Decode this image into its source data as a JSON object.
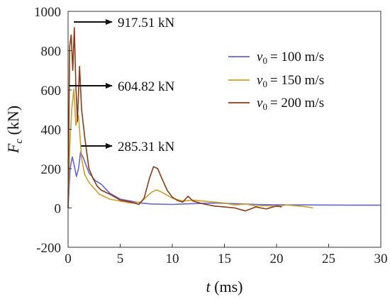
{
  "chart_data": {
    "type": "line",
    "xlabel": {
      "var": "t",
      "unit": " (ms)"
    },
    "ylabel": {
      "var": "F",
      "sub": "c",
      "unit": " (kN)"
    },
    "xlim": [
      0,
      30
    ],
    "ylim": [
      -200,
      1000
    ],
    "x_ticks": [
      {
        "v": 0,
        "label": "0"
      },
      {
        "v": 5,
        "label": "5"
      },
      {
        "v": 10,
        "label": "10"
      },
      {
        "v": 15,
        "label": "15"
      },
      {
        "v": 20,
        "label": "20"
      },
      {
        "v": 25,
        "label": "25"
      },
      {
        "v": 30,
        "label": "30"
      }
    ],
    "y_ticks": [
      {
        "v": -200,
        "label": "-200"
      },
      {
        "v": 0,
        "label": "0"
      },
      {
        "v": 200,
        "label": "200"
      },
      {
        "v": 400,
        "label": "400"
      },
      {
        "v": 600,
        "label": "600"
      },
      {
        "v": 800,
        "label": "800"
      },
      {
        "v": 1000,
        "label": "1000"
      }
    ],
    "grid": false,
    "legend_position": "top-right",
    "series": [
      {
        "name": "= 100 m/s",
        "legend_var": "v",
        "legend_sub": "0",
        "color": "#6464d2",
        "points": [
          [
            0,
            0
          ],
          [
            0.2,
            200
          ],
          [
            0.4,
            260
          ],
          [
            0.6,
            215
          ],
          [
            0.8,
            160
          ],
          [
            1.0,
            200
          ],
          [
            1.2,
            285.31
          ],
          [
            1.5,
            250
          ],
          [
            2.0,
            180
          ],
          [
            2.6,
            140
          ],
          [
            3.2,
            120
          ],
          [
            4,
            75
          ],
          [
            5,
            45
          ],
          [
            6,
            35
          ],
          [
            7,
            25
          ],
          [
            8,
            20
          ],
          [
            10,
            18
          ],
          [
            12,
            22
          ],
          [
            14,
            25
          ],
          [
            16,
            22
          ],
          [
            18,
            18
          ],
          [
            20,
            16
          ],
          [
            24,
            15
          ],
          [
            27,
            14
          ],
          [
            30,
            14
          ]
        ]
      },
      {
        "name": "= 150 m/s",
        "legend_var": "v",
        "legend_sub": "0",
        "color": "#c8a02a",
        "points": [
          [
            0,
            0
          ],
          [
            0.15,
            300
          ],
          [
            0.35,
            500
          ],
          [
            0.55,
            604.82
          ],
          [
            0.75,
            420
          ],
          [
            1.0,
            470
          ],
          [
            1.3,
            250
          ],
          [
            1.6,
            170
          ],
          [
            2.0,
            130
          ],
          [
            2.5,
            100
          ],
          [
            3,
            70
          ],
          [
            4,
            45
          ],
          [
            5,
            35
          ],
          [
            6,
            25
          ],
          [
            7,
            30
          ],
          [
            7.5,
            55
          ],
          [
            8,
            80
          ],
          [
            8.5,
            92
          ],
          [
            9,
            80
          ],
          [
            10,
            50
          ],
          [
            11,
            35
          ],
          [
            12,
            40
          ],
          [
            13,
            35
          ],
          [
            14,
            30
          ],
          [
            15,
            25
          ],
          [
            16,
            15
          ],
          [
            17,
            20
          ],
          [
            18,
            10
          ],
          [
            19,
            12
          ],
          [
            20,
            8
          ],
          [
            21,
            15
          ],
          [
            22,
            10
          ],
          [
            23,
            5
          ],
          [
            23.5,
            0
          ]
        ]
      },
      {
        "name": "= 200 m/s",
        "legend_var": "v",
        "legend_sub": "0",
        "color": "#8b3a14",
        "points": [
          [
            0,
            0
          ],
          [
            0.15,
            820
          ],
          [
            0.3,
            880
          ],
          [
            0.45,
            700
          ],
          [
            0.6,
            917.51
          ],
          [
            0.75,
            620
          ],
          [
            0.9,
            440
          ],
          [
            1.1,
            720
          ],
          [
            1.3,
            500
          ],
          [
            1.6,
            360
          ],
          [
            2.0,
            200
          ],
          [
            2.4,
            150
          ],
          [
            2.8,
            110
          ],
          [
            3.2,
            90
          ],
          [
            4,
            70
          ],
          [
            5,
            40
          ],
          [
            6,
            30
          ],
          [
            6.8,
            18
          ],
          [
            7.3,
            50
          ],
          [
            7.8,
            150
          ],
          [
            8.2,
            210
          ],
          [
            8.6,
            200
          ],
          [
            9,
            150
          ],
          [
            9.5,
            90
          ],
          [
            10,
            55
          ],
          [
            10.5,
            38
          ],
          [
            11,
            30
          ],
          [
            11.5,
            60
          ],
          [
            12,
            35
          ],
          [
            13,
            20
          ],
          [
            14,
            10
          ],
          [
            15,
            5
          ],
          [
            16,
            0
          ],
          [
            17,
            -15
          ],
          [
            18,
            5
          ],
          [
            19,
            -5
          ],
          [
            20,
            10
          ],
          [
            20.5,
            5
          ]
        ]
      }
    ],
    "annotations": [
      {
        "label": "917.51 kN",
        "x": 0.55,
        "y": 917.51
      },
      {
        "label": "604.82 kN",
        "x": 0.1,
        "y": 604.82
      },
      {
        "label": "285.31 kN",
        "x": 1.25,
        "y": 285.31
      }
    ]
  }
}
